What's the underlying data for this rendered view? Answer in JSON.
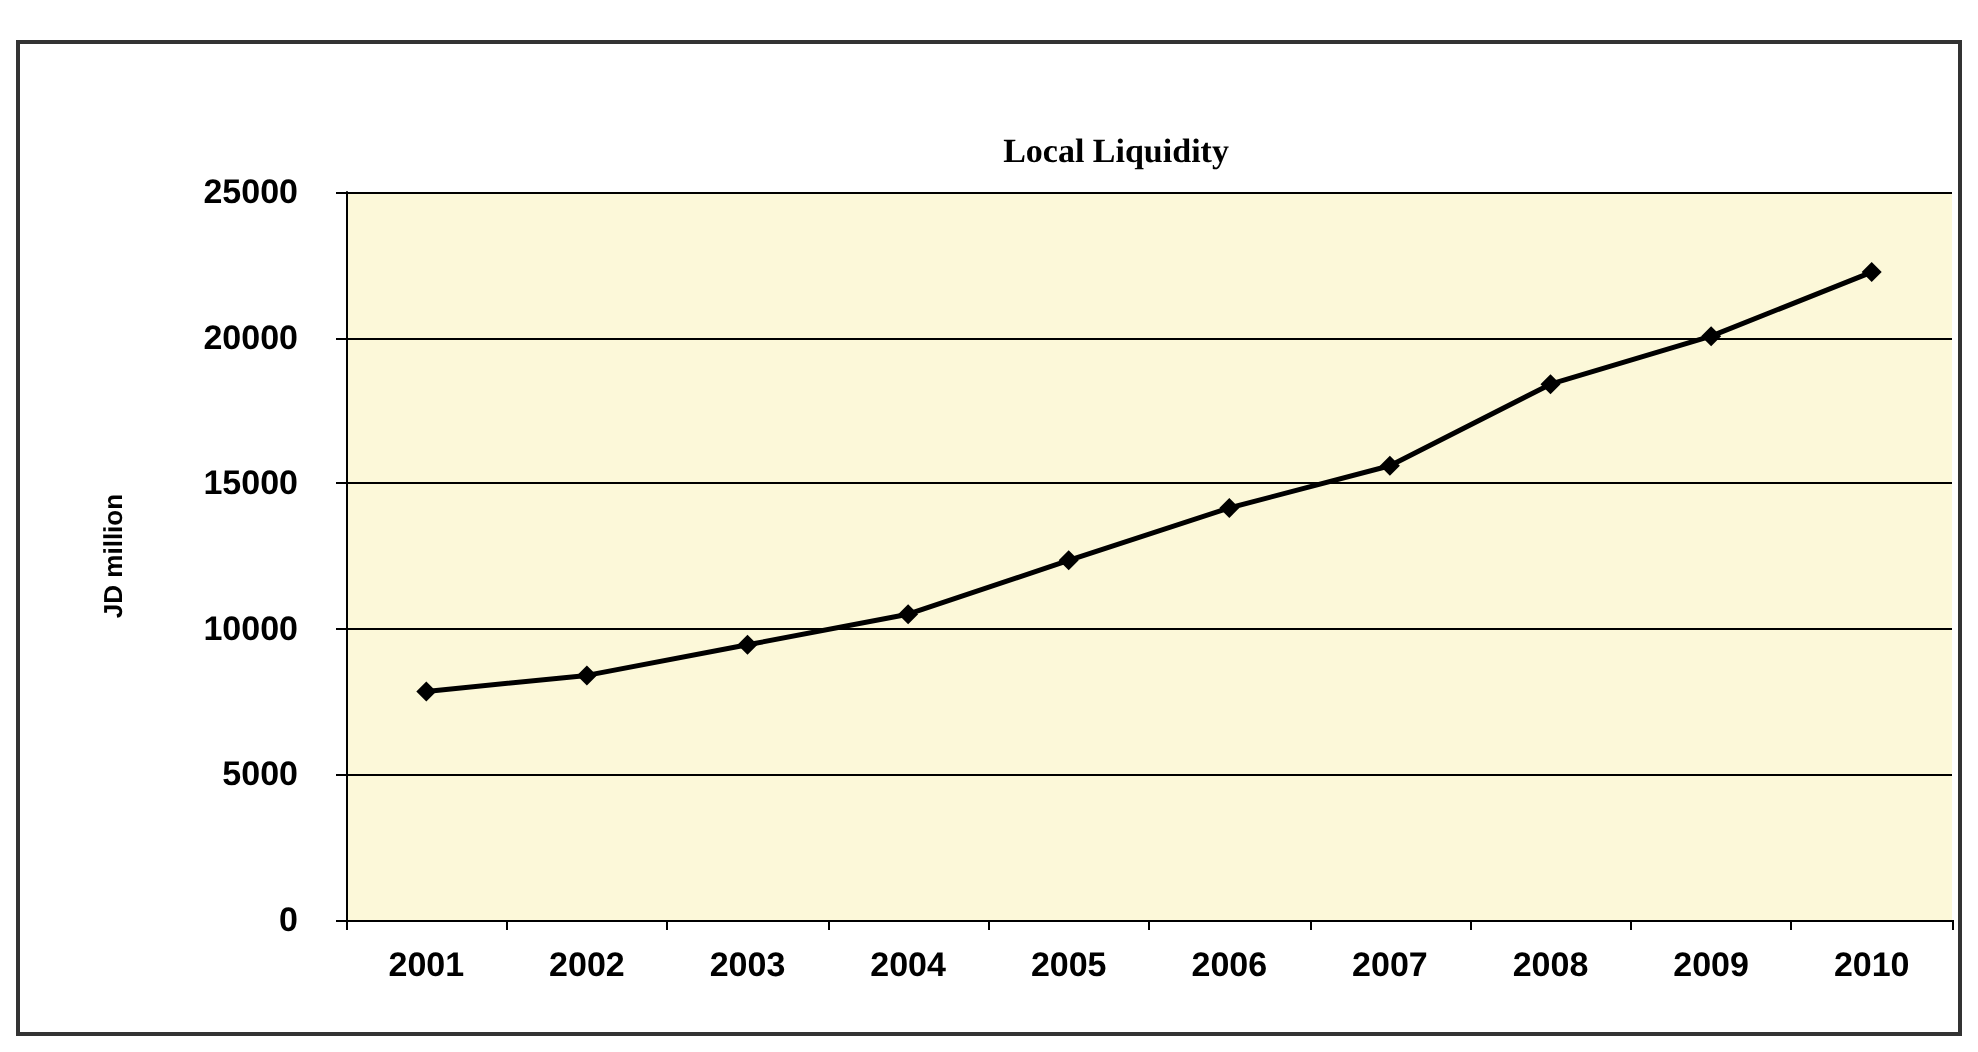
{
  "chart_data": {
    "type": "line",
    "title": "Local Liquidity",
    "ylabel": "JD million",
    "categories": [
      "2001",
      "2002",
      "2003",
      "2004",
      "2005",
      "2006",
      "2007",
      "2008",
      "2009",
      "2010"
    ],
    "series": [
      {
        "color": "#000000",
        "values": [
          7850,
          8400,
          9450,
          10500,
          12350,
          14150,
          15600,
          18400,
          20050,
          22250
        ]
      }
    ],
    "ylim": [
      0,
      25000
    ],
    "yticks": [
      0,
      5000,
      10000,
      15000,
      20000,
      25000
    ],
    "grid": "y",
    "marker": "diamond",
    "line_style": "solid"
  }
}
